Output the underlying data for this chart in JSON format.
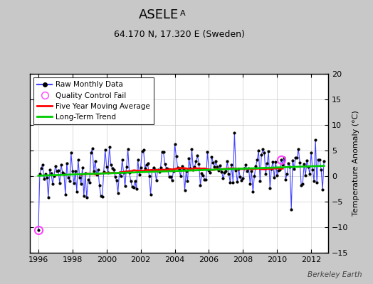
{
  "title_main": "ASELE",
  "title_sub_subscript": "A",
  "subtitle": "64.170 N, 17.320 E (Sweden)",
  "ylabel": "Temperature Anomaly (°C)",
  "watermark": "Berkeley Earth",
  "xlim": [
    1995.5,
    2013.0
  ],
  "ylim": [
    -15,
    20
  ],
  "yticks": [
    -15,
    -10,
    -5,
    0,
    5,
    10,
    15,
    20
  ],
  "xticks": [
    1996,
    1998,
    2000,
    2002,
    2004,
    2006,
    2008,
    2010,
    2012
  ],
  "bg_color": "#c8c8c8",
  "plot_bg_color": "#ffffff",
  "raw_color": "#4444ff",
  "dot_color": "#000000",
  "ma_color": "#ff0000",
  "trend_color": "#00cc00",
  "qc_color": "#ff44ff",
  "legend_loc": "upper left"
}
